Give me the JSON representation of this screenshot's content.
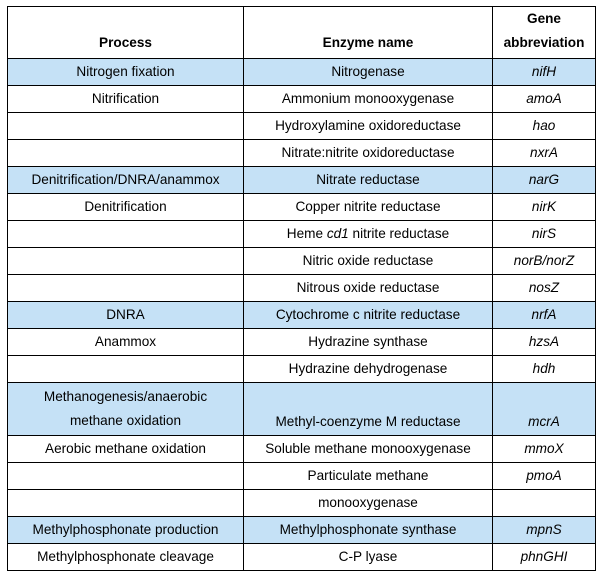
{
  "header": {
    "process": "Process",
    "enzyme": "Enzyme name",
    "gene_line1": "Gene",
    "gene_line2": "abbreviation"
  },
  "rows": [
    {
      "process": "Nitrogen fixation",
      "enzyme": "Nitrogenase",
      "gene": "nifH",
      "highlight": true
    },
    {
      "process": "Nitrification",
      "enzyme": "Ammonium monooxygenase",
      "gene": "amoA",
      "highlight": false
    },
    {
      "process": "",
      "enzyme": "Hydroxylamine oxidoreductase",
      "gene": "hao",
      "highlight": false
    },
    {
      "process": "",
      "enzyme": "Nitrate:nitrite oxidoreductase",
      "gene": "nxrA",
      "highlight": false
    },
    {
      "process": "Denitrification/DNRA/anammox",
      "enzyme": "Nitrate reductase",
      "gene": "narG",
      "highlight": true
    },
    {
      "process": "Denitrification",
      "enzyme": "Copper nitrite reductase",
      "gene": "nirK",
      "highlight": false
    },
    {
      "process": "",
      "enzyme_pre": "Heme ",
      "enzyme_em": "cd1",
      "enzyme_post": " nitrite reductase",
      "gene": "nirS",
      "highlight": false
    },
    {
      "process": "",
      "enzyme": "Nitric oxide reductase",
      "gene": "norB/norZ",
      "highlight": false
    },
    {
      "process": "",
      "enzyme": "Nitrous oxide reductase",
      "gene": "nosZ",
      "highlight": false
    },
    {
      "process": "DNRA",
      "enzyme": "Cytochrome c nitrite reductase",
      "gene": "nrfA",
      "highlight": true
    },
    {
      "process": "Anammox",
      "enzyme": "Hydrazine synthase",
      "gene": "hzsA",
      "highlight": false
    },
    {
      "process": "",
      "enzyme": "Hydrazine dehydrogenase",
      "gene": "hdh",
      "highlight": false
    },
    {
      "process_line1": "Methanogenesis/anaerobic",
      "process_line2": "methane oxidation",
      "enzyme": "Methyl-coenzyme M reductase",
      "gene": "mcrA",
      "highlight": true
    },
    {
      "process": "Aerobic methane oxidation",
      "enzyme": "Soluble methane monooxygenase",
      "gene": "mmoX",
      "highlight": false
    },
    {
      "process": "",
      "enzyme": "Particulate methane",
      "gene": "pmoA",
      "highlight": false
    },
    {
      "process": "",
      "enzyme": "monooxygenase",
      "gene": "",
      "highlight": false
    },
    {
      "process": "Methylphosphonate production",
      "enzyme": "Methylphosphonate synthase",
      "gene": "mpnS",
      "highlight": true
    },
    {
      "process": "Methylphosphonate cleavage",
      "enzyme": "C-P lyase",
      "gene": "phnGHI",
      "highlight": false
    }
  ]
}
